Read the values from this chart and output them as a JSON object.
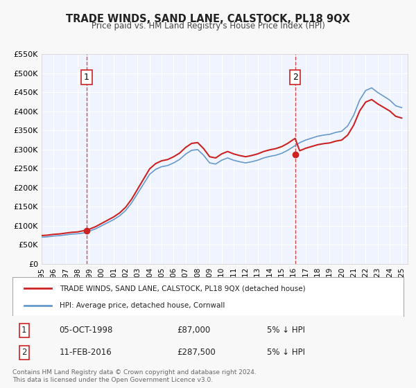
{
  "title": "TRADE WINDS, SAND LANE, CALSTOCK, PL18 9QX",
  "subtitle": "Price paid vs. HM Land Registry's House Price Index (HPI)",
  "xlabel": "",
  "ylabel": "",
  "bg_color": "#f0f4ff",
  "plot_bg_color": "#f0f4ff",
  "grid_color": "#ffffff",
  "hpi_color": "#6699cc",
  "price_color": "#cc2222",
  "marker1_date_idx": 1998.76,
  "marker1_value": 87000,
  "marker2_date_idx": 2016.12,
  "marker2_value": 287500,
  "annotation1_label": "1",
  "annotation2_label": "2",
  "legend_label_price": "TRADE WINDS, SAND LANE, CALSTOCK, PL18 9QX (detached house)",
  "legend_label_hpi": "HPI: Average price, detached house, Cornwall",
  "table_row1": [
    "1",
    "05-OCT-1998",
    "£87,000",
    "5% ↓ HPI"
  ],
  "table_row2": [
    "2",
    "11-FEB-2016",
    "£287,500",
    "5% ↓ HPI"
  ],
  "footer": "Contains HM Land Registry data © Crown copyright and database right 2024.\nThis data is licensed under the Open Government Licence v3.0.",
  "ylim": [
    0,
    550000
  ],
  "xlim_start": 1995.0,
  "xlim_end": 2025.5,
  "yticks": [
    0,
    50000,
    100000,
    150000,
    200000,
    250000,
    300000,
    350000,
    400000,
    450000,
    500000,
    550000
  ],
  "ytick_labels": [
    "£0",
    "£50K",
    "£100K",
    "£150K",
    "£200K",
    "£250K",
    "£300K",
    "£350K",
    "£400K",
    "£450K",
    "£500K",
    "£550K"
  ],
  "xticks": [
    1995,
    1996,
    1997,
    1998,
    1999,
    2000,
    2001,
    2002,
    2003,
    2004,
    2005,
    2006,
    2007,
    2008,
    2009,
    2010,
    2011,
    2012,
    2013,
    2014,
    2015,
    2016,
    2017,
    2018,
    2019,
    2020,
    2021,
    2022,
    2023,
    2024,
    2025
  ]
}
